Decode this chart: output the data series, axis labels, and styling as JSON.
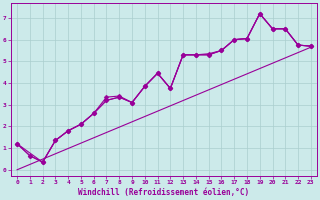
{
  "xlabel": "Windchill (Refroidissement éolien,°C)",
  "ylabel": "",
  "xlim": [
    -0.5,
    23.5
  ],
  "ylim": [
    -0.3,
    7.7
  ],
  "xticks": [
    0,
    1,
    2,
    3,
    4,
    5,
    6,
    7,
    8,
    9,
    10,
    11,
    12,
    13,
    14,
    15,
    16,
    17,
    18,
    19,
    20,
    21,
    22,
    23
  ],
  "yticks": [
    0,
    1,
    2,
    3,
    4,
    5,
    6,
    7
  ],
  "background_color": "#cceaea",
  "grid_color": "#aacece",
  "line_color": "#990099",
  "line_width": 0.8,
  "marker": "D",
  "marker_size": 2.5,
  "lines": [
    {
      "x": [
        0,
        1,
        2,
        3,
        4,
        5,
        6,
        7,
        8,
        9,
        10,
        11,
        12,
        13,
        14,
        15,
        16,
        17,
        18,
        19,
        20,
        21,
        22,
        23
      ],
      "y": [
        1.2,
        0.65,
        0.35,
        1.35,
        1.8,
        2.1,
        2.6,
        3.35,
        3.4,
        3.1,
        3.85,
        4.45,
        3.75,
        5.3,
        5.3,
        5.35,
        5.5,
        6.0,
        6.05,
        7.2,
        6.5,
        6.5,
        5.75,
        5.7
      ],
      "has_marker": true
    },
    {
      "x": [
        0,
        1,
        2,
        3,
        4,
        5,
        6,
        7,
        8,
        9,
        10,
        11,
        12,
        13,
        14,
        15,
        16,
        17,
        18,
        19,
        20,
        21,
        22,
        23
      ],
      "y": [
        1.2,
        0.65,
        0.35,
        1.35,
        1.8,
        2.1,
        2.6,
        3.2,
        3.35,
        3.1,
        3.85,
        4.45,
        3.75,
        5.3,
        5.3,
        5.3,
        5.5,
        6.0,
        6.05,
        7.2,
        6.5,
        6.5,
        5.75,
        5.7
      ],
      "has_marker": true
    },
    {
      "x": [
        0,
        2,
        3,
        4,
        5,
        6,
        7,
        8,
        9,
        10,
        11,
        12,
        13,
        14,
        15,
        16,
        17,
        18,
        19,
        20,
        21,
        22,
        23
      ],
      "y": [
        1.2,
        0.35,
        1.35,
        1.8,
        2.1,
        2.6,
        3.2,
        3.35,
        3.1,
        3.85,
        4.45,
        3.75,
        5.3,
        5.3,
        5.3,
        5.5,
        6.0,
        6.05,
        7.2,
        6.5,
        6.5,
        5.75,
        5.7
      ],
      "has_marker": true
    },
    {
      "x": [
        0,
        23
      ],
      "y": [
        0.0,
        5.65
      ],
      "has_marker": false
    }
  ]
}
